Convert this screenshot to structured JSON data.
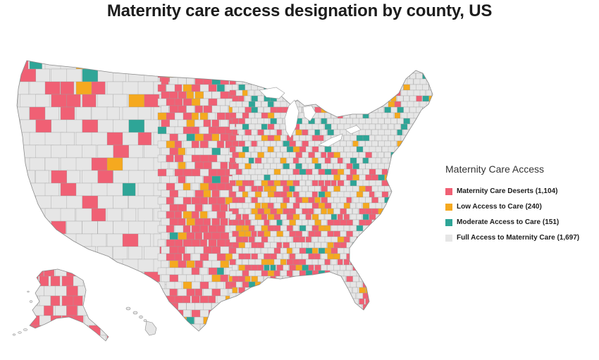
{
  "title": "Maternity care access designation by county, US",
  "colors": {
    "deserts": "#f06074",
    "low": "#f5a91f",
    "moderate": "#2ea597",
    "full": "#e6e6e6",
    "border": "#9e9e9e"
  },
  "legend": {
    "title": "Maternity Care Access",
    "items": [
      {
        "label": "Maternity Care Deserts (1,104)",
        "color": "#f06074"
      },
      {
        "label": "Low Access to Care (240)",
        "color": "#f5a91f"
      },
      {
        "label": "Moderate Access to Care (151)",
        "color": "#2ea597"
      },
      {
        "label": "Full Access to Maternity Care (1,697)",
        "color": "#e6e6e6"
      }
    ]
  },
  "regions": [
    "contiguous-us",
    "alaska",
    "hawaii"
  ]
}
